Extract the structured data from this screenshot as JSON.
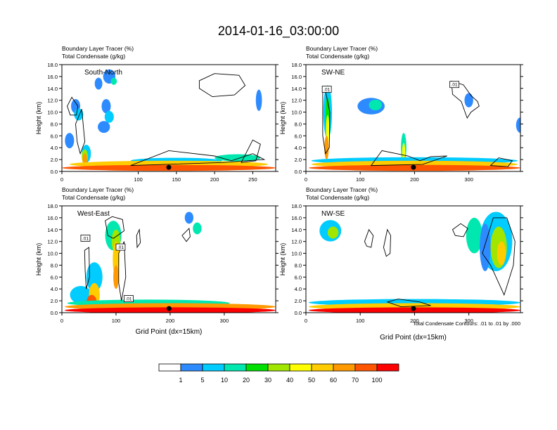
{
  "figure": {
    "title": "2014-01-16_03:00:00",
    "field_label": "Boundary Layer Tracer",
    "field_unit": "(%)",
    "overlay_label": "Total Condensate",
    "overlay_unit": "(g/kg)",
    "contour_note": "Total Condensate Contours: .01 to .01 by .000",
    "contour_label": ".01"
  },
  "colorbar": {
    "colors": [
      "#ffffff",
      "#2e8bff",
      "#00ccff",
      "#00e8b0",
      "#00e000",
      "#a0e600",
      "#ffff00",
      "#ffcc00",
      "#ff9900",
      "#ff5500",
      "#ff0000"
    ],
    "labels": [
      "1",
      "5",
      "10",
      "20",
      "30",
      "40",
      "50",
      "60",
      "70",
      "100"
    ]
  },
  "chart_data": [
    {
      "type": "heatmap",
      "panel": "South-North",
      "title": "South-North",
      "xlabel": "",
      "ylabel": "Height (km)",
      "xlim": [
        0,
        280
      ],
      "ylim": [
        0,
        18
      ],
      "xticks": [
        "0",
        "100",
        "150",
        "200",
        "250"
      ],
      "xtick_values": [
        0,
        100,
        150,
        200,
        250
      ],
      "yticks": [
        "0.0",
        "2.0",
        "4.0",
        "6.0",
        "8.0",
        "10.0",
        "12.0",
        "14.0",
        "16.0",
        "18.0"
      ],
      "marker_x": 140,
      "contour_label_x": null
    },
    {
      "type": "heatmap",
      "panel": "SW-NE",
      "title": "SW-NE",
      "xlabel": "",
      "ylabel": "Height (km)",
      "xlim": [
        0,
        395
      ],
      "ylim": [
        0,
        18
      ],
      "xticks": [
        "0",
        "100",
        "200",
        "300"
      ],
      "xtick_values": [
        0,
        100,
        200,
        300
      ],
      "yticks": [
        "0.0",
        "2.0",
        "4.0",
        "6.0",
        "8.0",
        "10.0",
        "12.0",
        "14.0",
        "16.0",
        "18.0"
      ],
      "marker_x": 198
    },
    {
      "type": "heatmap",
      "panel": "West-East",
      "title": "West-East",
      "xlabel": "Grid Point (dx=15km)",
      "ylabel": "Height (km)",
      "xlim": [
        0,
        395
      ],
      "ylim": [
        0,
        18
      ],
      "xticks": [
        "0",
        "100",
        "200",
        "300"
      ],
      "xtick_values": [
        0,
        100,
        200,
        300
      ],
      "yticks": [
        "0.0",
        "2.0",
        "4.0",
        "6.0",
        "8.0",
        "10.0",
        "12.0",
        "14.0",
        "16.0",
        "18.0"
      ],
      "marker_x": 198
    },
    {
      "type": "heatmap",
      "panel": "NW-SE",
      "title": "NW-SE",
      "xlabel": "Grid Point (dx=15km)",
      "ylabel": "Height (km)",
      "xlim": [
        0,
        395
      ],
      "ylim": [
        0,
        18
      ],
      "xticks": [
        "0",
        "100",
        "200",
        "300"
      ],
      "xtick_values": [
        0,
        100,
        200,
        300
      ],
      "yticks": [
        "0.0",
        "2.0",
        "4.0",
        "6.0",
        "8.0",
        "10.0",
        "12.0",
        "14.0",
        "16.0",
        "18.0"
      ],
      "marker_x": 198
    }
  ]
}
